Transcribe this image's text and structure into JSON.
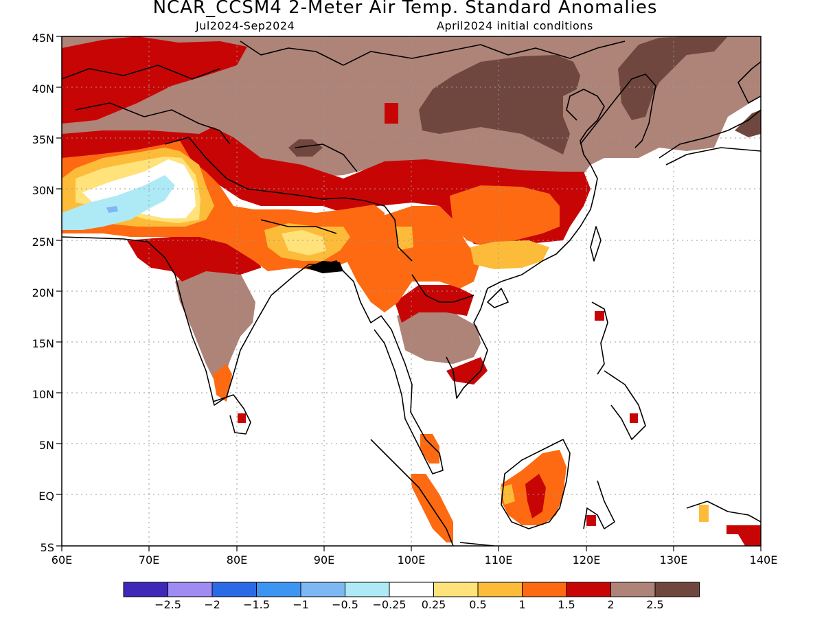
{
  "header": {
    "title": "NCAR_CCSM4 2-Meter Air Temp. Standard Anomalies",
    "period": "Jul2024-Sep2024",
    "init": "April2024 initial conditions"
  },
  "map": {
    "lon_range": [
      60,
      140
    ],
    "lat_range": [
      -5,
      45
    ],
    "lon_ticks": [
      "60E",
      "70E",
      "80E",
      "90E",
      "100E",
      "110E",
      "120E",
      "130E",
      "140E"
    ],
    "lat_ticks": [
      "45N",
      "40N",
      "35N",
      "30N",
      "25N",
      "20N",
      "15N",
      "10N",
      "5N",
      "EQ",
      "5S"
    ],
    "colors": {
      "neg25": "#3d28b8",
      "neg2": "#9f8bf2",
      "neg15": "#2b6ae6",
      "neg1": "#3d95f2",
      "neg05": "#7db8f5",
      "neg025": "#aeeaf6",
      "zero": "#ffffff",
      "p025": "#ffe27a",
      "p05": "#fcbc39",
      "p1": "#fd6a11",
      "p15": "#c80505",
      "p2": "#ae8378",
      "p25": "#70473e"
    }
  },
  "colorbar": {
    "labels": [
      "-2.5",
      "-2",
      "-1.5",
      "-1",
      "-0.5",
      "-0.25",
      "0.25",
      "0.5",
      "1",
      "1.5",
      "2",
      "2.5"
    ],
    "colors": [
      "#3d28b8",
      "#9f8bf2",
      "#2b6ae6",
      "#3d95f2",
      "#7db8f5",
      "#aeeaf6",
      "#ffffff",
      "#ffe27a",
      "#fcbc39",
      "#fd6a11",
      "#c80505",
      "#ae8378",
      "#70473e"
    ]
  }
}
